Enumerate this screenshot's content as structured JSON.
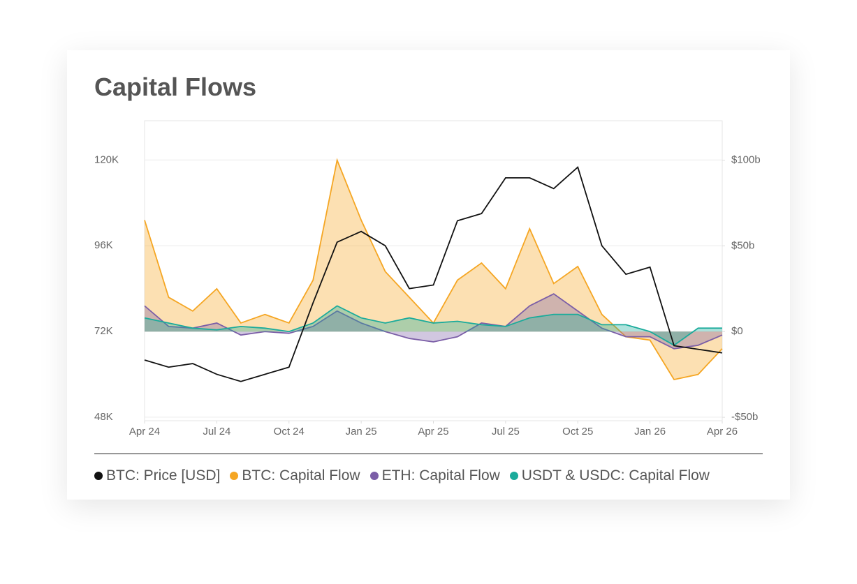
{
  "chart_data": {
    "type": "line",
    "title": "Capital Flows",
    "x": [
      "2024-04",
      "2024-05",
      "2024-06",
      "2024-07",
      "2024-08",
      "2024-09",
      "2024-10",
      "2024-11",
      "2024-12",
      "2025-01",
      "2025-02",
      "2025-03",
      "2025-04",
      "2025-05",
      "2025-06",
      "2025-07",
      "2025-08",
      "2025-09",
      "2025-10",
      "2025-11",
      "2025-12",
      "2026-01",
      "2026-02",
      "2026-03",
      "2026-04"
    ],
    "xticks": [
      {
        "value": "2024-04",
        "label": "Apr 24"
      },
      {
        "value": "2024-07",
        "label": "Jul 24"
      },
      {
        "value": "2024-10",
        "label": "Oct 24"
      },
      {
        "value": "2025-01",
        "label": "Jan 25"
      },
      {
        "value": "2025-04",
        "label": "Apr 25"
      },
      {
        "value": "2025-07",
        "label": "Jul 25"
      },
      {
        "value": "2025-10",
        "label": "Oct 25"
      },
      {
        "value": "2026-01",
        "label": "Jan 26"
      },
      {
        "value": "2026-04",
        "label": "Apr 26"
      }
    ],
    "ylim": [
      47000,
      131000
    ],
    "yticks": [
      {
        "value": 48000,
        "label": "48K"
      },
      {
        "value": 72000,
        "label": "72K"
      },
      {
        "value": 96000,
        "label": "96K"
      },
      {
        "value": 120000,
        "label": "120K"
      }
    ],
    "y2lim": [
      -52,
      123
    ],
    "y2ticks": [
      {
        "value": -50,
        "label": "-$50b"
      },
      {
        "value": 0,
        "label": "$0"
      },
      {
        "value": 50,
        "label": "$50b"
      },
      {
        "value": 100,
        "label": "$100b"
      }
    ],
    "grid": true,
    "series": [
      {
        "name": "BTC: Price [USD]",
        "color": "#111111",
        "values": [
          64000,
          62000,
          63000,
          60000,
          58000,
          60000,
          62000,
          80000,
          97000,
          100000,
          96000,
          84000,
          85000,
          103000,
          105000,
          115000,
          115000,
          112000,
          118000,
          96000,
          88000,
          90000,
          68000,
          67000,
          66000
        ]
      },
      {
        "name": "BTC: Capital Flow",
        "color": "#f5a623",
        "axis": "y2",
        "values": [
          65,
          20,
          12,
          25,
          5,
          10,
          5,
          30,
          100,
          65,
          35,
          20,
          5,
          30,
          40,
          25,
          60,
          28,
          38,
          10,
          -3,
          -5,
          -28,
          -25,
          -10
        ]
      },
      {
        "name": "ETH: Capital Flow",
        "color": "#7b5ea7",
        "axis": "y2",
        "values": [
          15,
          3,
          2,
          5,
          -2,
          0,
          -1,
          3,
          12,
          5,
          0,
          -4,
          -6,
          -3,
          5,
          3,
          15,
          22,
          12,
          2,
          -3,
          -3,
          -10,
          -8,
          -2
        ]
      },
      {
        "name": "USDT & USDC: Capital Flow",
        "color": "#1aab9b",
        "axis": "y2",
        "values": [
          8,
          5,
          2,
          1,
          3,
          2,
          0,
          5,
          15,
          8,
          5,
          8,
          5,
          6,
          4,
          3,
          8,
          10,
          10,
          4,
          4,
          0,
          -8,
          2,
          2
        ]
      }
    ]
  }
}
